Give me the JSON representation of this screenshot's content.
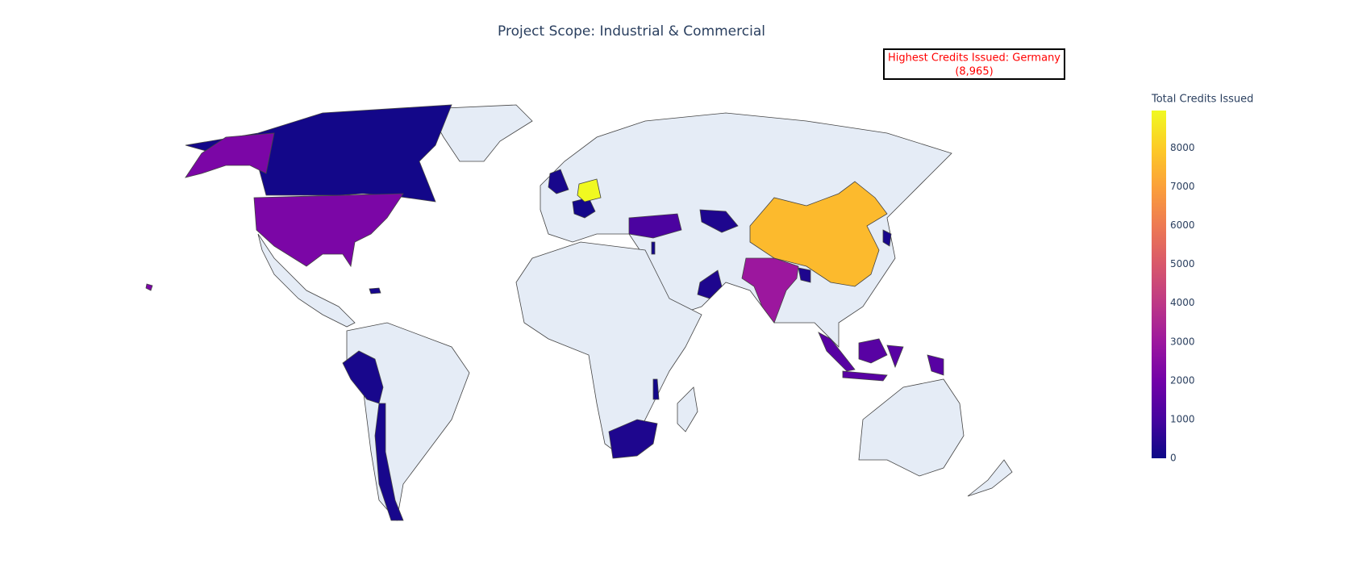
{
  "chart_data": {
    "type": "choropleth",
    "title": "Project Scope: Industrial & Commercial",
    "annotation": [
      "Highest Credits Issued: Germany",
      "(8,965)"
    ],
    "annotation_color": "#ff0000",
    "values": [
      100,
      2200,
      200,
      100,
      8965,
      1100,
      300,
      7600,
      200,
      3000,
      300,
      300,
      100,
      1400,
      300,
      100,
      200,
      200,
      200
    ],
    "colorscale": [
      "#0d0887",
      "#46039f",
      "#7201a8",
      "#9c179e",
      "#bd3786",
      "#d8576b",
      "#ed7953",
      "#fb9f3a",
      "#fdca26",
      "#f0f921"
    ],
    "zlim": [
      0,
      8965
    ],
    "colorbar": {
      "title": "Total Credits Issued",
      "ticks": [
        0,
        1000,
        2000,
        3000,
        4000,
        5000,
        6000,
        7000,
        8000
      ]
    },
    "land_color": "#e5ecf6"
  }
}
